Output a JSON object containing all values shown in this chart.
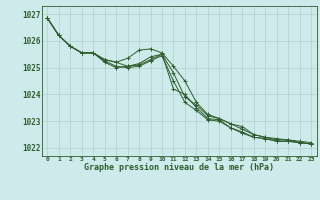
{
  "title": "Graphe pression niveau de la mer (hPa)",
  "background_color": "#ceeaea",
  "grid_color": "#b0d0d0",
  "line_color": "#2d5e2d",
  "xlim": [
    -0.5,
    23.5
  ],
  "ylim": [
    1021.7,
    1027.3
  ],
  "yticks": [
    1022,
    1023,
    1024,
    1025,
    1026,
    1027
  ],
  "x_labels": [
    "0",
    "1",
    "2",
    "3",
    "4",
    "5",
    "6",
    "7",
    "8",
    "9",
    "10",
    "11",
    "12",
    "13",
    "14",
    "15",
    "16",
    "17",
    "18",
    "19",
    "20",
    "21",
    "22",
    "23"
  ],
  "series": [
    [
      1026.85,
      1026.2,
      1025.8,
      1025.55,
      1025.55,
      1025.3,
      1025.2,
      1025.05,
      1025.1,
      1025.3,
      1025.5,
      1024.8,
      1023.9,
      1023.6,
      1023.2,
      1023.1,
      1022.9,
      1022.8,
      1022.5,
      1022.4,
      1022.3,
      1022.3,
      1022.2,
      1022.15
    ],
    [
      1026.85,
      1026.2,
      1025.8,
      1025.55,
      1025.55,
      1025.25,
      1025.05,
      1025.0,
      1025.05,
      1025.25,
      1025.45,
      1024.5,
      1023.7,
      1023.4,
      1023.05,
      1023.0,
      1022.75,
      1022.6,
      1022.4,
      1022.35,
      1022.25,
      1022.25,
      1022.2,
      1022.15
    ],
    [
      1026.85,
      1026.2,
      1025.8,
      1025.55,
      1025.55,
      1025.2,
      1025.0,
      1025.05,
      1025.15,
      1025.4,
      1025.5,
      1024.2,
      1024.0,
      1023.5,
      1023.1,
      1023.05,
      1022.75,
      1022.55,
      1022.4,
      1022.35,
      1022.25,
      1022.25,
      1022.2,
      1022.15
    ],
    [
      1026.85,
      1026.2,
      1025.8,
      1025.55,
      1025.55,
      1025.3,
      1025.2,
      1025.35,
      1025.65,
      1025.7,
      1025.55,
      1025.05,
      1024.5,
      1023.7,
      1023.25,
      1023.1,
      1022.9,
      1022.7,
      1022.5,
      1022.4,
      1022.35,
      1022.3,
      1022.25,
      1022.2
    ]
  ]
}
